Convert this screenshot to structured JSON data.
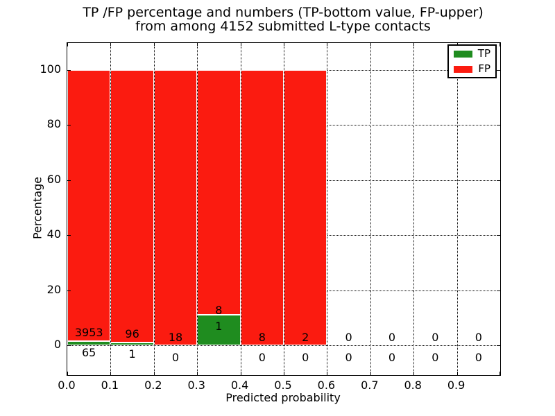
{
  "title": {
    "line1": "TP /FP percentage and numbers (TP-bottom value, FP-upper)",
    "line2": "from among 4152 submitted L-type contacts"
  },
  "axes": {
    "xlabel": "Predicted probability",
    "ylabel": "Percentage",
    "xtick_labels": [
      "0.0",
      "0.1",
      "0.2",
      "0.3",
      "0.4",
      "0.5",
      "0.6",
      "0.7",
      "0.8",
      "0.9"
    ],
    "ytick_values": [
      0,
      20,
      40,
      60,
      80,
      100
    ],
    "xlim": [
      0.0,
      1.0
    ],
    "ylim": [
      -10.8,
      109.8
    ],
    "grid_style": "dotted",
    "frame_color": "#000000"
  },
  "legend": {
    "position": "upper-right",
    "items": [
      {
        "label": "TP",
        "color": "#1f8c1f"
      },
      {
        "label": "FP",
        "color": "#fb1b10"
      }
    ]
  },
  "chart_data": {
    "type": "bar",
    "stacked": true,
    "title": "TP /FP percentage and numbers (TP-bottom value, FP-upper) from among 4152 submitted L-type contacts",
    "xlabel": "Predicted probability",
    "ylabel": "Percentage",
    "xlim": [
      0.0,
      1.0
    ],
    "ylim": [
      -10.8,
      109.8
    ],
    "grid": "dotted",
    "legend_position": "upper right",
    "bin_width": 0.1,
    "bin_starts": [
      0.0,
      0.1,
      0.2,
      0.3,
      0.4,
      0.5,
      0.6,
      0.7,
      0.8,
      0.9
    ],
    "series": [
      {
        "name": "TP",
        "color": "#1f8c1f",
        "counts": [
          65,
          1,
          0,
          1,
          0,
          0,
          0,
          0,
          0,
          0
        ]
      },
      {
        "name": "FP",
        "color": "#fb1b10",
        "counts": [
          3953,
          96,
          18,
          8,
          8,
          2,
          0,
          0,
          0,
          0
        ]
      }
    ],
    "tp_percent_of_bin": [
      1.62,
      1.03,
      0.0,
      11.11,
      0.0,
      0.0,
      0.0,
      0.0,
      0.0,
      0.0
    ],
    "bar_total_percent": 100
  }
}
